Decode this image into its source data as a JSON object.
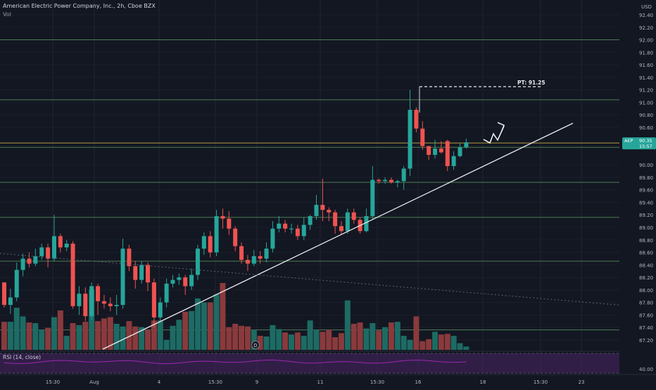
{
  "header": {
    "symbol_line": "American Electric Power Company, Inc., 2h, Cboe BZX",
    "volume_label": "Vol",
    "currency": "USD"
  },
  "price_tag": {
    "symbol": "AEP",
    "price": "90.35",
    "countdown": "15:57"
  },
  "annotation": {
    "target": "PT: 91.25"
  },
  "event_marker": "D",
  "rsi": {
    "label": "RSI (14, close)",
    "level_label": "40.00"
  },
  "colors": {
    "background": "#131722",
    "up": "#26a69a",
    "down": "#ef5350",
    "up_volume": "#1d6b64",
    "down_volume": "#8a3a3c",
    "level_line": "#4c7d53",
    "current_level": "#b49a3c",
    "rsi_band": "#4a2466",
    "rsi_line": "#9c27b0"
  },
  "chart_data": {
    "type": "candlestick",
    "timeframe": "2h",
    "y_axis": {
      "labels": [
        "92.40",
        "92.20",
        "92.00",
        "91.80",
        "91.60",
        "91.40",
        "91.20",
        "91.00",
        "90.80",
        "90.60",
        "90.00",
        "89.80",
        "89.60",
        "89.40",
        "89.20",
        "89.00",
        "88.80",
        "88.60",
        "88.40",
        "88.20",
        "88.00",
        "87.80",
        "87.60",
        "87.40",
        "87.20"
      ],
      "range": [
        87.12,
        92.58
      ]
    },
    "x_axis": {
      "labels": [
        "15:30",
        "Aug",
        "4",
        "15:30",
        "9",
        "11",
        "15:30",
        "16",
        "18",
        "15:30",
        "23"
      ]
    },
    "horizontal_levels": [
      92.0,
      91.04,
      90.28,
      89.72,
      89.16,
      88.46,
      87.36
    ],
    "current_price": 90.35,
    "target_line": 91.25,
    "candles": [
      [
        88.12,
        87.76,
        88.12,
        87.72
      ],
      [
        87.76,
        87.88,
        88.02,
        87.62
      ],
      [
        87.88,
        88.32,
        88.44,
        87.82
      ],
      [
        88.32,
        88.5,
        88.58,
        88.22
      ],
      [
        88.5,
        88.42,
        88.6,
        88.36
      ],
      [
        88.42,
        88.54,
        88.66,
        88.38
      ],
      [
        88.54,
        88.68,
        88.74,
        88.48
      ],
      [
        88.68,
        88.5,
        88.74,
        88.36
      ],
      [
        88.5,
        88.86,
        89.2,
        88.46
      ],
      [
        88.86,
        88.68,
        88.9,
        88.6
      ],
      [
        88.68,
        88.74,
        88.8,
        88.62
      ],
      [
        88.74,
        87.74,
        88.78,
        87.7
      ],
      [
        87.74,
        87.94,
        88.06,
        87.6
      ],
      [
        87.94,
        87.58,
        88.04,
        87.5
      ],
      [
        87.58,
        88.06,
        88.12,
        87.52
      ],
      [
        88.06,
        87.82,
        88.1,
        87.6
      ],
      [
        87.82,
        87.78,
        87.92,
        87.7
      ],
      [
        87.78,
        87.74,
        87.88,
        87.66
      ],
      [
        87.74,
        87.76,
        87.92,
        87.6
      ],
      [
        87.76,
        88.66,
        88.82,
        87.7
      ],
      [
        88.66,
        88.38,
        88.72,
        88.3
      ],
      [
        88.38,
        88.16,
        88.46,
        88.02
      ],
      [
        88.16,
        88.4,
        88.46,
        88.1
      ],
      [
        88.4,
        88.12,
        88.44,
        87.98
      ],
      [
        88.12,
        87.56,
        88.18,
        87.4
      ],
      [
        87.56,
        87.8,
        87.88,
        87.5
      ],
      [
        87.8,
        88.1,
        88.18,
        87.72
      ],
      [
        88.1,
        88.16,
        88.24,
        88.04
      ],
      [
        88.16,
        88.2,
        88.26,
        88.08
      ],
      [
        88.2,
        88.06,
        88.24,
        87.92
      ],
      [
        88.06,
        88.24,
        88.34,
        88.0
      ],
      [
        88.24,
        88.66,
        88.72,
        88.16
      ],
      [
        88.66,
        88.86,
        88.92,
        88.56
      ],
      [
        88.86,
        88.6,
        88.94,
        88.52
      ],
      [
        88.6,
        89.18,
        89.28,
        88.54
      ],
      [
        89.18,
        89.14,
        89.3,
        88.98
      ],
      [
        89.14,
        88.98,
        89.26,
        88.88
      ],
      [
        88.98,
        88.7,
        89.02,
        88.62
      ],
      [
        88.7,
        88.48,
        88.76,
        88.42
      ],
      [
        88.48,
        88.42,
        88.56,
        88.3
      ],
      [
        88.42,
        88.54,
        88.64,
        88.38
      ],
      [
        88.54,
        88.5,
        88.62,
        88.42
      ],
      [
        88.5,
        88.66,
        88.76,
        88.44
      ],
      [
        88.66,
        88.98,
        89.1,
        88.6
      ],
      [
        88.98,
        89.06,
        89.18,
        88.92
      ],
      [
        89.06,
        88.98,
        89.12,
        88.92
      ],
      [
        88.98,
        88.98,
        89.06,
        88.9
      ],
      [
        88.98,
        88.86,
        89.04,
        88.8
      ],
      [
        88.86,
        89.04,
        89.16,
        88.8
      ],
      [
        89.04,
        89.18,
        89.2,
        88.96
      ],
      [
        89.18,
        89.36,
        89.52,
        89.12
      ],
      [
        89.36,
        89.28,
        89.78,
        89.1
      ],
      [
        89.28,
        89.24,
        89.32,
        89.1
      ],
      [
        89.24,
        89.02,
        89.28,
        88.9
      ],
      [
        89.02,
        88.94,
        89.1,
        88.88
      ],
      [
        88.94,
        89.24,
        89.3,
        88.9
      ],
      [
        89.24,
        89.12,
        89.3,
        89.06
      ],
      [
        89.12,
        88.94,
        89.16,
        88.9
      ],
      [
        88.94,
        89.18,
        89.3,
        88.92
      ],
      [
        89.18,
        89.76,
        89.98,
        89.12
      ],
      [
        89.76,
        89.74,
        89.78,
        89.7
      ],
      [
        89.74,
        89.76,
        89.8,
        89.7
      ],
      [
        89.76,
        89.72,
        89.8,
        89.7
      ],
      [
        89.72,
        89.74,
        89.76,
        89.64
      ],
      [
        89.74,
        89.94,
        89.98,
        89.6
      ],
      [
        89.94,
        90.88,
        91.2,
        89.82
      ],
      [
        90.88,
        90.58,
        90.92,
        90.52
      ],
      [
        90.58,
        90.3,
        90.7,
        90.24
      ],
      [
        90.3,
        90.16,
        90.26,
        90.08
      ],
      [
        90.16,
        90.26,
        90.4,
        90.1
      ],
      [
        90.26,
        90.2,
        90.38,
        90.18
      ],
      [
        90.38,
        89.98,
        90.4,
        89.9
      ],
      [
        89.98,
        90.14,
        90.22,
        89.92
      ],
      [
        90.14,
        90.28,
        90.34,
        90.12
      ],
      [
        90.28,
        90.36,
        90.42,
        90.26
      ]
    ],
    "volume_relative": [
      0.42,
      0.42,
      0.63,
      0.5,
      0.41,
      0.4,
      0.3,
      0.33,
      0.49,
      0.59,
      0.21,
      0.4,
      0.37,
      0.42,
      0.9,
      0.43,
      0.47,
      0.49,
      0.39,
      0.35,
      0.43,
      0.35,
      0.34,
      0.3,
      0.44,
      0.44,
      0.15,
      0.36,
      0.45,
      0.57,
      0.58,
      0.77,
      0.71,
      0.71,
      0.83,
      1.0,
      0.34,
      0.39,
      0.36,
      0.35,
      0.3,
      0.21,
      0.2,
      0.37,
      0.31,
      0.26,
      0.23,
      0.26,
      0.21,
      0.44,
      0.3,
      0.27,
      0.3,
      0.19,
      0.25,
      0.74,
      0.39,
      0.41,
      0.32,
      0.4,
      0.29,
      0.34,
      0.41,
      0.42,
      0.21,
      0.15,
      0.5,
      0.13,
      0.16,
      0.27,
      0.23,
      0.24,
      0.21,
      0.1,
      0.05
    ],
    "trendline": [
      [
        0.0,
        87.11
      ],
      [
        0.0,
        88.58
      ]
    ],
    "rsi": {
      "period": 14,
      "level": 40.0
    }
  }
}
